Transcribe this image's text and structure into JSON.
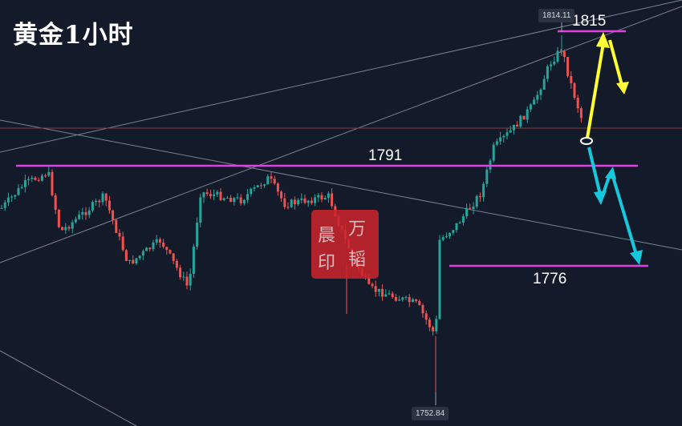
{
  "title": "黄金1小时",
  "chart_data": {
    "type": "candlestick",
    "title": "黄金1小时",
    "levels": [
      {
        "label": "1815",
        "value": 1815
      },
      {
        "label": "1791",
        "value": 1791
      },
      {
        "label": "1776",
        "value": 1776
      }
    ],
    "price_markers": [
      {
        "label": "1814.11",
        "value": 1814.11,
        "kind": "high"
      },
      {
        "label": "1752.84",
        "value": 1752.84,
        "kind": "low"
      }
    ],
    "scenario_arrows": [
      {
        "color": "yellow",
        "path": [
          1795.5,
          1815,
          1808
        ]
      },
      {
        "color": "cyan",
        "path": [
          1795.5,
          1786,
          1791,
          1776
        ]
      }
    ],
    "colors": {
      "up": "#26a69a",
      "down": "#ef5350",
      "level": "#e03fe0",
      "bull_arrow": "#ffff33",
      "bear_arrow": "#17c8dc"
    }
  },
  "stamp": {
    "chars": [
      "晨",
      "万",
      "印",
      "韬"
    ]
  }
}
